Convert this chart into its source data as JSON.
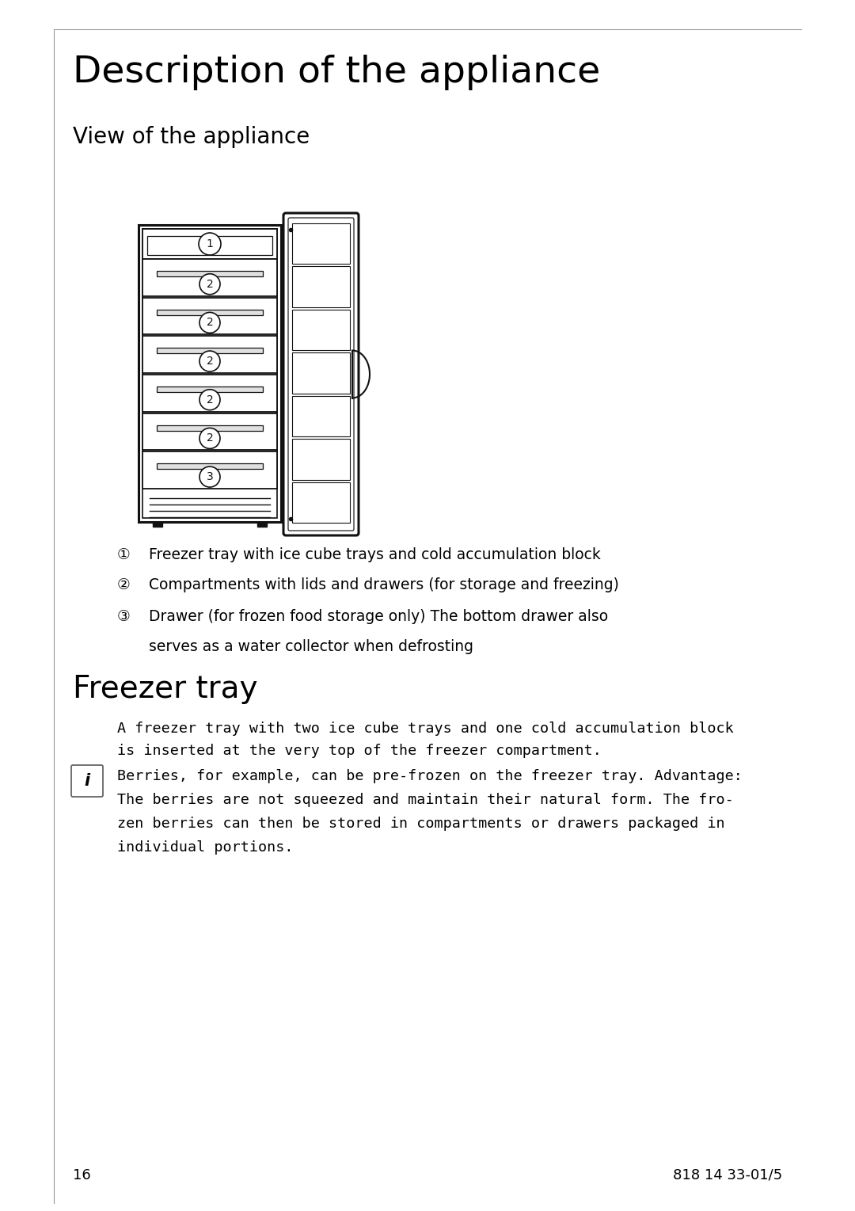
{
  "title": "Description of the appliance",
  "subtitle": "View of the appliance",
  "section2": "Freezer tray",
  "bg_color": "#ffffff",
  "text_color": "#000000",
  "page_number": "16",
  "doc_number": "818 14 33-01/5",
  "label1_num": "①",
  "label1_text": "Freezer tray with ice cube trays and cold accumulation block",
  "label2_num": "②",
  "label2_text": "Compartments with lids and drawers (for storage and freezing)",
  "label3_num": "③",
  "label3_text": "Drawer (for frozen food storage only) The bottom drawer also",
  "label3_text2": "serves as a water collector when defrosting",
  "para1_line1": "A freezer tray with two ice cube trays and one cold accumulation block",
  "para1_line2": "is inserted at the very top of the freezer compartment.",
  "info_line1": "Berries, for example, can be pre-frozen on the freezer tray. Advantage:",
  "info_line2": "The berries are not squeezed and maintain their natural form. The fro-",
  "info_line3": "zen berries can then be stored in compartments or drawers packaged in",
  "info_line4": "individual portions."
}
